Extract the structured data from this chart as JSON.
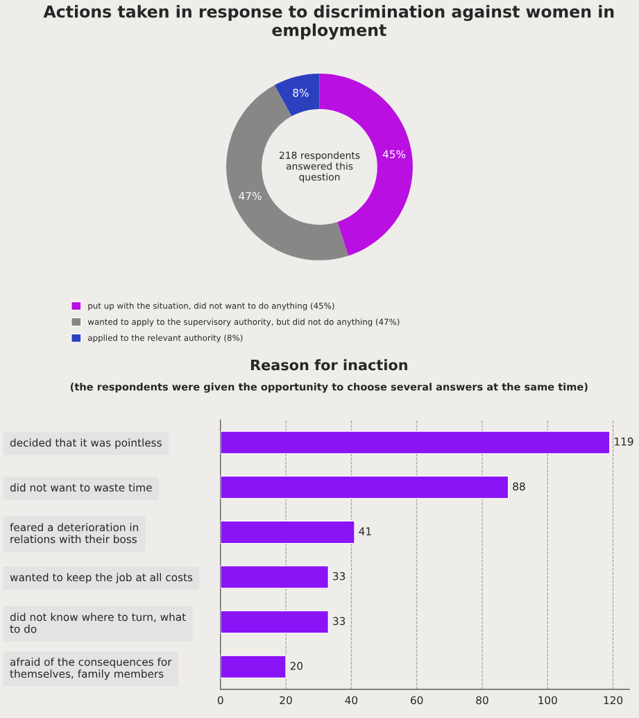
{
  "chart_data": [
    {
      "type": "donut",
      "title": "Actions taken in response to discrimination against women in employment",
      "categories": [
        "put up with the situation, did not want to do anything (45%)",
        "wanted to apply to the supervisory authority, but did not do anything (47%)",
        "applied to the relevant authority (8%)"
      ],
      "values": [
        45,
        47,
        8
      ],
      "colors": [
        "#b90fe0",
        "#878787",
        "#2b40be"
      ],
      "value_labels": [
        "45%",
        "47%",
        "8%"
      ],
      "annotations": [
        "218 respondents\nanswered this\nquestion"
      ],
      "legend": "bottom"
    },
    {
      "type": "bar",
      "orientation": "horizontal",
      "title": "Reason for inaction",
      "subtitle": "(the respondents were given the opportunity to choose several answers at the same time)",
      "categories": [
        "decided that it was pointless",
        "did not want to waste time",
        "feared a deterioration in\nrelations with their boss",
        "wanted to keep the job at all costs",
        "did not know where to turn, what\nto do",
        "afraid of the consequences for\nthemselves, family members"
      ],
      "values": [
        119,
        88,
        41,
        33,
        33,
        20
      ],
      "color": "#8a14f5",
      "xlim": [
        0,
        125
      ],
      "xticks": [
        0,
        20,
        40,
        60,
        80,
        100,
        120
      ],
      "grid": "x",
      "data_labels": true
    }
  ]
}
